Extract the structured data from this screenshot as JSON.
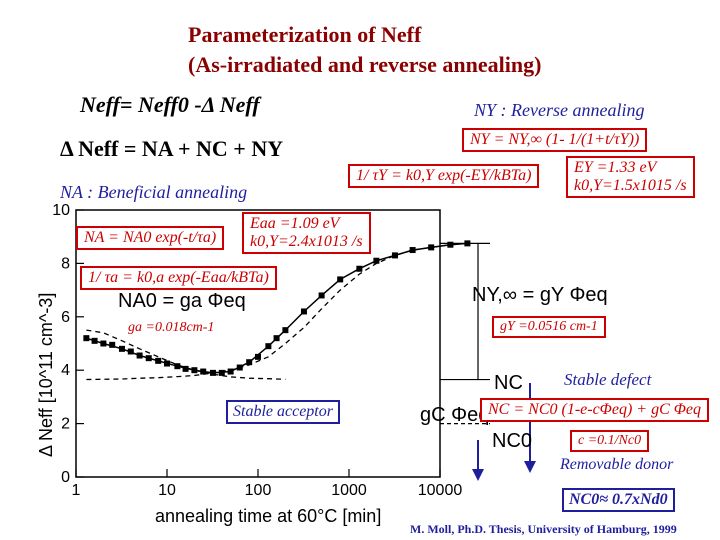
{
  "title": {
    "line1": "Parameterization of Neff",
    "line2": "(As-irradiated and reverse annealing)"
  },
  "equations": {
    "neff_main": "Neff= Neff0 -Δ Neff",
    "delta_neff": "Δ Neff = NA + NC + NY",
    "na_header": "NA : Beneficial annealing",
    "na_formula": "NA = NA0 exp(-t/τa)",
    "ea_a": "Eaa =1.09 eV",
    "k0_a": "k0,Y=2.4x1013 /s",
    "tau_a": "1/ τa = k0,a exp(-Eaa/kBTa)",
    "ny_header": "NY : Reverse annealing",
    "ny_formula": "NY = NY,∞ (1- 1/(1+t/τY))",
    "tau_y": "1/ τY = k0,Y exp(-EY/kBTa)",
    "ey": "EY =1.33 eV",
    "k0_y": "k0,Y=1.5x1015 /s",
    "ga": "ga =0.018cm-1",
    "gy": "gY =0.0516 cm-1",
    "stable_acceptor": "Stable acceptor",
    "stable_defect": "Stable defect",
    "nc_formula": "NC = NC0 (1-e-cΦeq) + gC Φeq",
    "c_formula": "c =0.1/Nc0",
    "removable_donor": "Removable donor",
    "nc0_formula": "NC0≈ 0.7xNd0",
    "credit": "M. Moll, Ph.D. Thesis, University of Hamburg, 1999"
  },
  "plot_labels": {
    "na0": "NA0 = ga Φeq",
    "ny_inf": "NY,∞ = gY Φeq",
    "nc": "NC",
    "gc_phi": "gC Φeq",
    "nc0": "NC0"
  },
  "chart_data": {
    "type": "line",
    "xlabel": "annealing time at 60°C [min]",
    "ylabel": "Δ Neff [10^11 cm^-3]",
    "xscale": "log",
    "xlim": [
      1,
      100000
    ],
    "ylim": [
      0,
      10
    ],
    "x_ticks": [
      "1",
      "10",
      "100",
      "1000",
      "10000"
    ],
    "y_ticks": [
      "0",
      "2",
      "4",
      "6",
      "8",
      "10"
    ],
    "series": [
      {
        "type": "scatter",
        "x": [
          1.3,
          1.6,
          2,
          2.5,
          3.2,
          4,
          5,
          6.3,
          8,
          10,
          13,
          16,
          20,
          25,
          32,
          40,
          50,
          63,
          80,
          100,
          130,
          160,
          200,
          320,
          500,
          800,
          1300,
          2000,
          3200,
          5000,
          8000,
          13000,
          20000
        ],
        "y": [
          5.2,
          5.1,
          5.0,
          4.95,
          4.8,
          4.7,
          4.55,
          4.45,
          4.35,
          4.25,
          4.15,
          4.05,
          4.0,
          3.95,
          3.9,
          3.9,
          3.95,
          4.1,
          4.3,
          4.5,
          4.9,
          5.2,
          5.5,
          6.2,
          6.8,
          7.4,
          7.8,
          8.1,
          8.3,
          8.5,
          8.6,
          8.7,
          8.75
        ]
      },
      {
        "type": "line",
        "x": [
          1.3,
          2,
          3.2,
          5,
          8,
          13,
          20,
          32,
          50,
          80,
          130,
          200,
          320,
          500,
          800,
          1300,
          2000,
          3200,
          5000,
          8000,
          13000,
          20000
        ],
        "y": [
          5.2,
          5.0,
          4.8,
          4.55,
          4.35,
          4.15,
          4.0,
          3.9,
          3.95,
          4.3,
          4.9,
          5.5,
          6.2,
          6.8,
          7.4,
          7.8,
          8.1,
          8.3,
          8.5,
          8.6,
          8.7,
          8.75
        ]
      },
      {
        "type": "line",
        "x": [
          1.3,
          2,
          3.2,
          5,
          8,
          13,
          20,
          32,
          50,
          80,
          130,
          200
        ],
        "y": [
          5.5,
          5.4,
          5.1,
          4.8,
          4.5,
          4.2,
          4.0,
          3.85,
          3.75,
          3.7,
          3.68,
          3.66
        ]
      },
      {
        "type": "line",
        "x": [
          1.3,
          2,
          3.2,
          5,
          8,
          13,
          20,
          32,
          50,
          80,
          130,
          200,
          320,
          500,
          800,
          1300,
          2000,
          3200,
          5000,
          8000,
          13000,
          20000
        ],
        "y": [
          3.65,
          3.66,
          3.67,
          3.7,
          3.72,
          3.76,
          3.8,
          3.9,
          4.0,
          4.2,
          4.5,
          5.0,
          5.6,
          6.3,
          7.0,
          7.6,
          8.0,
          8.3,
          8.5,
          8.6,
          8.7,
          8.75
        ]
      }
    ]
  },
  "colors": {
    "title": "#8b0000",
    "blue": "#1f1f9e",
    "red": "#cc0000"
  }
}
